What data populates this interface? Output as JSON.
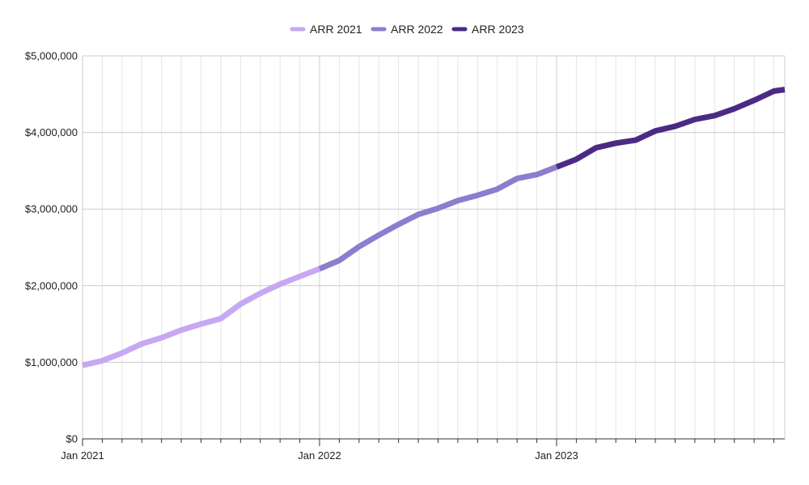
{
  "colors": {
    "ARR 2021": "#c7a8f2",
    "ARR 2022": "#8e7ccf",
    "ARR 2023": "#4b2a86",
    "grid_major": "#cccccc",
    "grid_minor": "#e6e6e6",
    "axis": "#333333"
  },
  "chart_data": {
    "type": "line",
    "title": "",
    "xlabel": "",
    "ylabel": "",
    "legend": {
      "position": "top",
      "entries": [
        "ARR 2021",
        "ARR 2022",
        "ARR 2023"
      ]
    },
    "grid": true,
    "xlim": [
      "2021-01",
      "2024-01"
    ],
    "ylim": [
      0,
      5000000
    ],
    "x_ticks": [
      "Jan 2021",
      "Jan 2022",
      "Jan 2023"
    ],
    "y_ticks": [
      "$0",
      "$1,000,000",
      "$2,000,000",
      "$3,000,000",
      "$4,000,000",
      "$5,000,000"
    ],
    "series": [
      {
        "name": "ARR 2021",
        "x": [
          "2021-01",
          "2021-02",
          "2021-03",
          "2021-04",
          "2021-05",
          "2021-06",
          "2021-07",
          "2021-08",
          "2021-09",
          "2021-10",
          "2021-11",
          "2021-12",
          "2022-01"
        ],
        "values": [
          960000,
          1020000,
          1120000,
          1240000,
          1320000,
          1420000,
          1500000,
          1570000,
          1760000,
          1900000,
          2020000,
          2120000,
          2220000
        ]
      },
      {
        "name": "ARR 2022",
        "x": [
          "2022-01",
          "2022-02",
          "2022-03",
          "2022-04",
          "2022-05",
          "2022-06",
          "2022-07",
          "2022-08",
          "2022-09",
          "2022-10",
          "2022-11",
          "2022-12",
          "2023-01"
        ],
        "values": [
          2220000,
          2330000,
          2510000,
          2660000,
          2800000,
          2930000,
          3010000,
          3110000,
          3180000,
          3260000,
          3400000,
          3450000,
          3550000
        ]
      },
      {
        "name": "ARR 2023",
        "x": [
          "2023-01",
          "2023-02",
          "2023-03",
          "2023-04",
          "2023-05",
          "2023-06",
          "2023-07",
          "2023-08",
          "2023-09",
          "2023-10",
          "2023-11",
          "2023-12",
          "2024-01"
        ],
        "values": [
          3550000,
          3650000,
          3800000,
          3860000,
          3900000,
          4020000,
          4080000,
          4170000,
          4220000,
          4310000,
          4420000,
          4540000,
          4560000
        ]
      }
    ]
  }
}
